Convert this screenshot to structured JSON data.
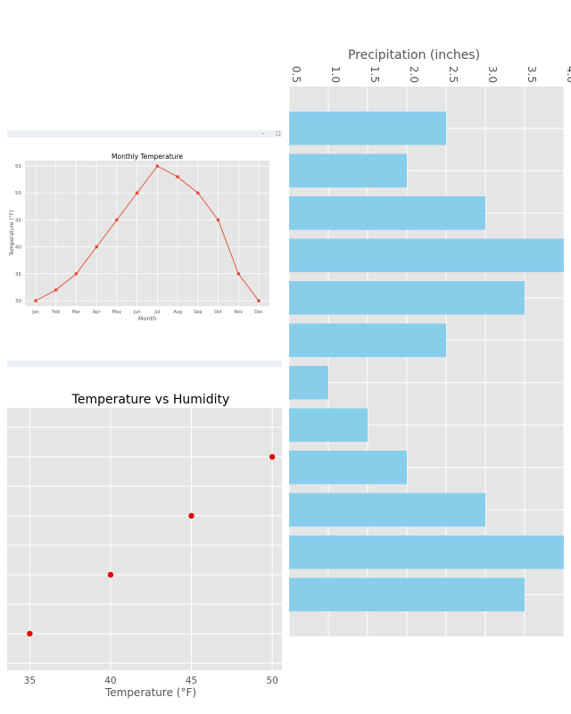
{
  "window": {
    "minimize_glyph": "–",
    "maximize_glyph": "☐"
  },
  "colors": {
    "line": "#e24a33",
    "bars": "#87ceeb",
    "scatter": "#e00000",
    "panel": "#e5e5e5",
    "grid": "#ffffff",
    "titlebar": "#eef0f7"
  },
  "chart_data": [
    {
      "type": "line",
      "title": "Monthly Temperature",
      "xlabel": "Month",
      "ylabel": "Temperature (°F)",
      "categories": [
        "Jan",
        "Feb",
        "Mar",
        "Apr",
        "May",
        "Jun",
        "Jul",
        "Aug",
        "Sep",
        "Oct",
        "Nov",
        "Dec"
      ],
      "values": [
        30,
        32,
        35,
        40,
        45,
        50,
        55,
        53,
        50,
        45,
        35,
        30
      ],
      "ylim": [
        29,
        56
      ],
      "yticks": [
        30,
        35,
        40,
        45,
        50,
        55
      ],
      "grid": true
    },
    {
      "type": "scatter",
      "title": "Temperature vs Humidity",
      "xlabel": "Temperature (°F)",
      "ylabel": "",
      "x": [
        35,
        40,
        45,
        50
      ],
      "y": [
        1,
        2,
        3,
        4
      ],
      "xlim": [
        33.6,
        50.6
      ],
      "ylim": [
        0.38,
        4.83
      ],
      "xticks": [
        35,
        40,
        45,
        50
      ],
      "grid": true
    },
    {
      "type": "bar",
      "orientation": "horizontal",
      "title": "",
      "xlabel": "Precipitation (inches)",
      "values": [
        2.5,
        2.0,
        3.0,
        4.0,
        3.5,
        2.5,
        1.0,
        1.5,
        2.0,
        3.0,
        4.0,
        3.5
      ],
      "xlim": [
        0.5,
        4.0
      ],
      "xticks": [
        "0.5",
        "1.0",
        "1.5",
        "2.0",
        "2.5",
        "3.0",
        "3.5",
        "4.0"
      ],
      "tick_label_rotation": 90,
      "grid": true
    }
  ]
}
